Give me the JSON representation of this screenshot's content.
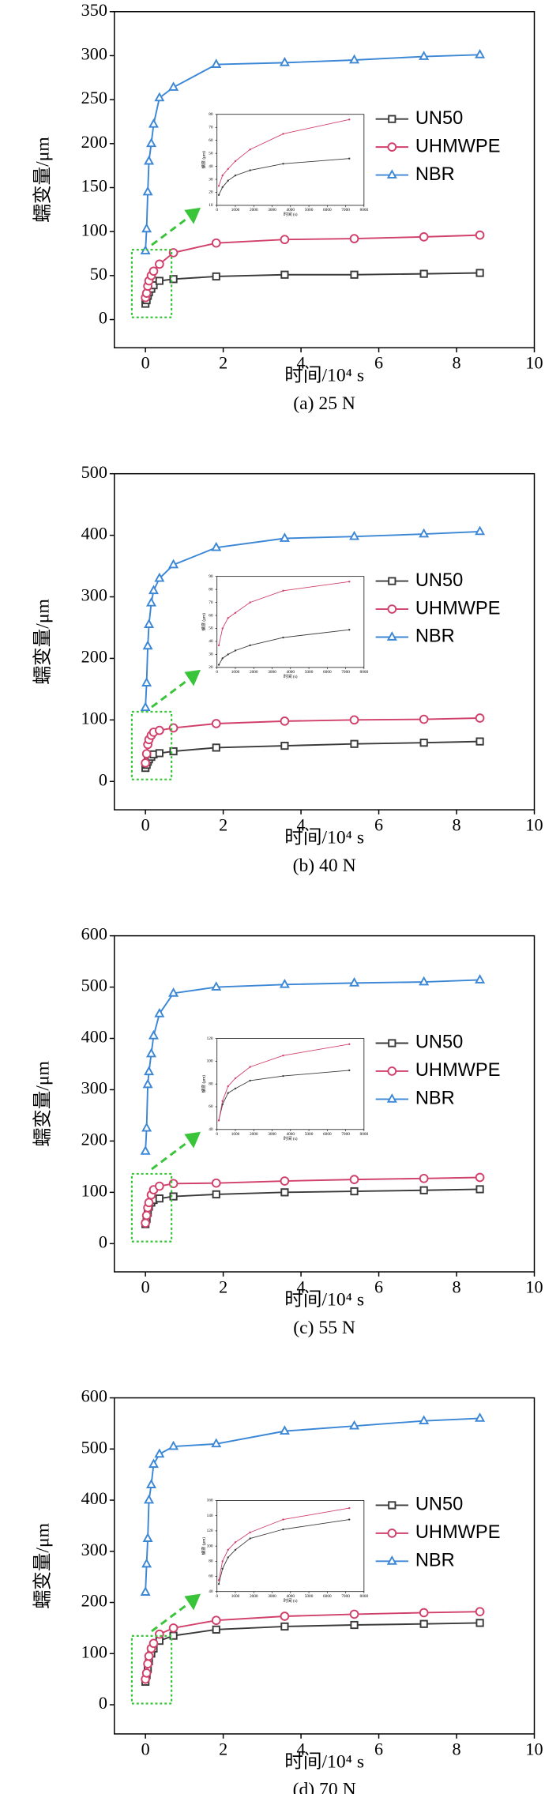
{
  "chart_data": [
    {
      "type": "line",
      "caption": "(a) 25 N",
      "x_label": "时间/10⁴ s",
      "y_label": "蠕变量/μm",
      "x": [
        0,
        0.03,
        0.06,
        0.09,
        0.15,
        0.21,
        0.36,
        0.72,
        1.82,
        3.58,
        5.37,
        7.16,
        8.6
      ],
      "xlim": [
        -0.8,
        10
      ],
      "xticks": [
        0,
        2,
        4,
        6,
        8,
        10
      ],
      "ylim": [
        -32,
        350
      ],
      "yticks": [
        0,
        50,
        100,
        150,
        200,
        250,
        300,
        350
      ],
      "legend": "upper right",
      "series": [
        {
          "name": "UN50",
          "color": "#3a3a3a",
          "marker": "square",
          "values": [
            18,
            22,
            27,
            31,
            35,
            39,
            44,
            46,
            49,
            51,
            51,
            52,
            53
          ]
        },
        {
          "name": "UHMWPE",
          "color": "#d0406a",
          "marker": "circle",
          "values": [
            25,
            30,
            38,
            44,
            50,
            55,
            63,
            76,
            87,
            91,
            92,
            94,
            96
          ]
        },
        {
          "name": "NBR",
          "color": "#3b87d6",
          "marker": "triangle",
          "values": [
            78,
            103,
            145,
            180,
            200,
            222,
            252,
            264,
            290,
            292,
            295,
            299,
            301
          ]
        }
      ],
      "inset": {
        "x_label": "时间 (s)",
        "y_label": "蠕变 (μm)",
        "x": [
          100,
          300,
          600,
          1000,
          1800,
          3600,
          7200
        ],
        "xlim": [
          0,
          8000
        ],
        "xticks": [
          0,
          1000,
          2000,
          3000,
          4000,
          5000,
          6000,
          7000,
          8000
        ],
        "ylim": [
          10,
          80
        ],
        "yticks": [
          10,
          20,
          30,
          40,
          50,
          60,
          70,
          80
        ],
        "series": [
          {
            "color": "#3a3a3a",
            "values": [
              18,
              24,
              29,
              33,
              37,
              42,
              46
            ]
          },
          {
            "color": "#d0406a",
            "values": [
              25,
              33,
              38,
              44,
              53,
              65,
              76
            ]
          }
        ]
      }
    },
    {
      "type": "line",
      "caption": "(b) 40 N",
      "x_label": "时间/10⁴ s",
      "y_label": "蠕变量/μm",
      "x": [
        0,
        0.03,
        0.06,
        0.09,
        0.15,
        0.21,
        0.36,
        0.72,
        1.82,
        3.58,
        5.37,
        7.16,
        8.6
      ],
      "xlim": [
        -0.8,
        10
      ],
      "xticks": [
        0,
        2,
        4,
        6,
        8,
        10
      ],
      "ylim": [
        -46,
        500
      ],
      "yticks": [
        0,
        100,
        200,
        300,
        400,
        500
      ],
      "legend": "upper right",
      "series": [
        {
          "name": "UN50",
          "color": "#3a3a3a",
          "marker": "square",
          "values": [
            22,
            27,
            32,
            36,
            40,
            44,
            46,
            49,
            55,
            58,
            61,
            63,
            65
          ]
        },
        {
          "name": "UHMWPE",
          "color": "#d0406a",
          "marker": "circle",
          "values": [
            30,
            45,
            60,
            68,
            75,
            80,
            83,
            87,
            94,
            98,
            100,
            101,
            103
          ]
        },
        {
          "name": "NBR",
          "color": "#3b87d6",
          "marker": "triangle",
          "values": [
            120,
            160,
            220,
            255,
            290,
            310,
            330,
            352,
            380,
            395,
            398,
            402,
            406
          ]
        }
      ],
      "inset": {
        "x_label": "时间 (s)",
        "y_label": "蠕变 (μm)",
        "x": [
          100,
          300,
          600,
          1000,
          1800,
          3600,
          7200
        ],
        "xlim": [
          0,
          8000
        ],
        "xticks": [
          0,
          1000,
          2000,
          3000,
          4000,
          5000,
          6000,
          7000,
          8000
        ],
        "ylim": [
          20,
          90
        ],
        "yticks": [
          20,
          30,
          40,
          50,
          60,
          70,
          80,
          90
        ],
        "series": [
          {
            "color": "#3a3a3a",
            "values": [
              22,
              27,
              30,
              33,
              37,
              43,
              49
            ]
          },
          {
            "color": "#d0406a",
            "values": [
              37,
              50,
              58,
              62,
              70,
              79,
              86
            ]
          }
        ]
      }
    },
    {
      "type": "line",
      "caption": "(c) 55 N",
      "x_label": "时间/10⁴ s",
      "y_label": "蠕变量/μm",
      "x": [
        0,
        0.03,
        0.06,
        0.09,
        0.15,
        0.21,
        0.36,
        0.72,
        1.82,
        3.58,
        5.37,
        7.16,
        8.6
      ],
      "xlim": [
        -0.8,
        10
      ],
      "xticks": [
        0,
        2,
        4,
        6,
        8,
        10
      ],
      "ylim": [
        -55,
        600
      ],
      "yticks": [
        0,
        100,
        200,
        300,
        400,
        500,
        600
      ],
      "legend": "upper right",
      "series": [
        {
          "name": "UN50",
          "color": "#3a3a3a",
          "marker": "square",
          "values": [
            38,
            48,
            60,
            72,
            80,
            85,
            88,
            92,
            96,
            100,
            102,
            104,
            106
          ]
        },
        {
          "name": "UHMWPE",
          "color": "#d0406a",
          "marker": "circle",
          "values": [
            40,
            55,
            70,
            80,
            95,
            105,
            112,
            117,
            118,
            122,
            125,
            127,
            129
          ]
        },
        {
          "name": "NBR",
          "color": "#3b87d6",
          "marker": "triangle",
          "values": [
            180,
            225,
            310,
            335,
            370,
            405,
            448,
            488,
            500,
            505,
            508,
            510,
            514
          ]
        }
      ],
      "inset": {
        "x_label": "时间 (s)",
        "y_label": "蠕变 (μm)",
        "x": [
          100,
          300,
          600,
          1000,
          1800,
          3600,
          7200
        ],
        "xlim": [
          0,
          8000
        ],
        "xticks": [
          0,
          1000,
          2000,
          3000,
          4000,
          5000,
          6000,
          7000,
          8000
        ],
        "ylim": [
          40,
          120
        ],
        "yticks": [
          40,
          60,
          80,
          100,
          120
        ],
        "series": [
          {
            "color": "#3a3a3a",
            "values": [
              48,
              62,
              72,
              76,
              83,
              87,
              92
            ]
          },
          {
            "color": "#d0406a",
            "values": [
              48,
              65,
              78,
              85,
              95,
              105,
              115
            ]
          }
        ]
      }
    },
    {
      "type": "line",
      "caption": "(d) 70 N",
      "x_label": "时间/10⁴ s",
      "y_label": "蠕变量/μm",
      "x": [
        0,
        0.03,
        0.06,
        0.09,
        0.15,
        0.21,
        0.36,
        0.72,
        1.82,
        3.58,
        5.37,
        7.16,
        8.6
      ],
      "xlim": [
        -0.8,
        10
      ],
      "xticks": [
        0,
        2,
        4,
        6,
        8,
        10
      ],
      "ylim": [
        -57,
        600
      ],
      "yticks": [
        0,
        100,
        200,
        300,
        400,
        500,
        600
      ],
      "legend": "upper right",
      "series": [
        {
          "name": "UN50",
          "color": "#3a3a3a",
          "marker": "square",
          "values": [
            45,
            58,
            70,
            85,
            100,
            110,
            125,
            135,
            147,
            153,
            156,
            158,
            160
          ]
        },
        {
          "name": "UHMWPE",
          "color": "#d0406a",
          "marker": "circle",
          "values": [
            50,
            62,
            80,
            95,
            110,
            120,
            138,
            150,
            165,
            173,
            177,
            180,
            182
          ]
        },
        {
          "name": "NBR",
          "color": "#3b87d6",
          "marker": "triangle",
          "values": [
            220,
            275,
            325,
            400,
            430,
            470,
            490,
            505,
            510,
            535,
            545,
            555,
            560
          ]
        }
      ],
      "inset": {
        "x_label": "时间 (s)",
        "y_label": "蠕变 (μm)",
        "x": [
          100,
          300,
          600,
          1000,
          1800,
          3600,
          7200
        ],
        "xlim": [
          0,
          8000
        ],
        "xticks": [
          0,
          1000,
          2000,
          3000,
          4000,
          5000,
          6000,
          7000,
          8000
        ],
        "ylim": [
          40,
          160
        ],
        "yticks": [
          40,
          60,
          80,
          100,
          120,
          140,
          160
        ],
        "series": [
          {
            "color": "#3a3a3a",
            "values": [
              50,
              70,
              85,
              95,
              110,
              122,
              135
            ]
          },
          {
            "color": "#d0406a",
            "values": [
              55,
              80,
              95,
              105,
              118,
              135,
              150
            ]
          }
        ]
      }
    }
  ]
}
